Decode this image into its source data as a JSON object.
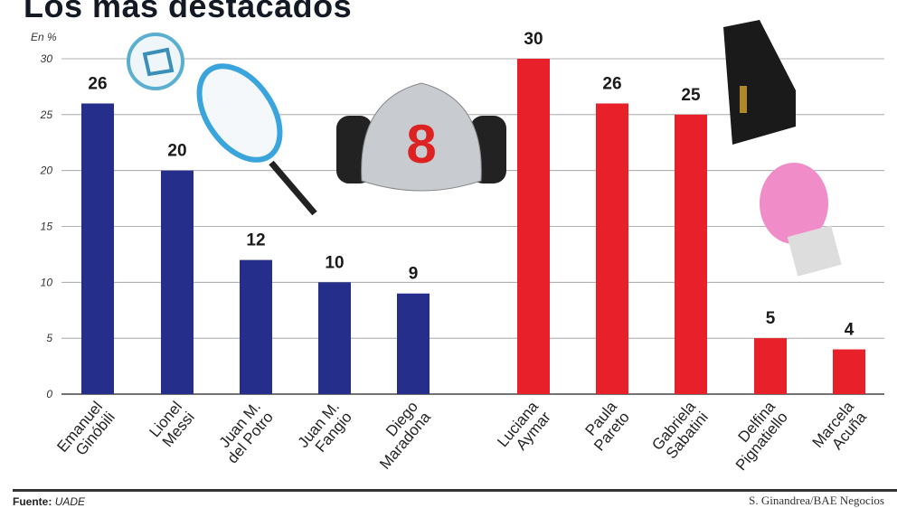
{
  "chart_data": {
    "type": "bar",
    "title": "Los mas destacados",
    "ylabel": "En %",
    "ylim": [
      0,
      30
    ],
    "yticks": [
      0,
      5,
      10,
      15,
      20,
      25,
      30
    ],
    "grid": true,
    "categories": [
      [
        "Emanuel",
        "Ginóbili"
      ],
      [
        "Lionel",
        "Messi"
      ],
      [
        "Juan M.",
        "del Potro"
      ],
      [
        "Juan M.",
        "Fangio"
      ],
      [
        "Diego",
        "Maradona"
      ],
      [
        "Luciana",
        "Aymar"
      ],
      [
        "Paula",
        "Pareto"
      ],
      [
        "Gabriela",
        "Sabatini"
      ],
      [
        "Delfina",
        "Pignatiello"
      ],
      [
        "Marcela",
        "Acuña"
      ]
    ],
    "values": [
      26,
      20,
      12,
      10,
      9,
      30,
      26,
      25,
      5,
      4
    ],
    "colors": [
      "#262e8c",
      "#262e8c",
      "#262e8c",
      "#262e8c",
      "#262e8c",
      "#e8202a",
      "#e8202a",
      "#e8202a",
      "#e8202a",
      "#e8202a"
    ]
  },
  "footer": {
    "source_label": "Fuente:",
    "source": "UADE",
    "credit": "S. Ginandrea/BAE Negocios"
  },
  "icons": [
    "soccer-ball-icon",
    "tennis-racket-icon",
    "race-car-icon",
    "black-belt-icon",
    "boxing-glove-icon"
  ]
}
